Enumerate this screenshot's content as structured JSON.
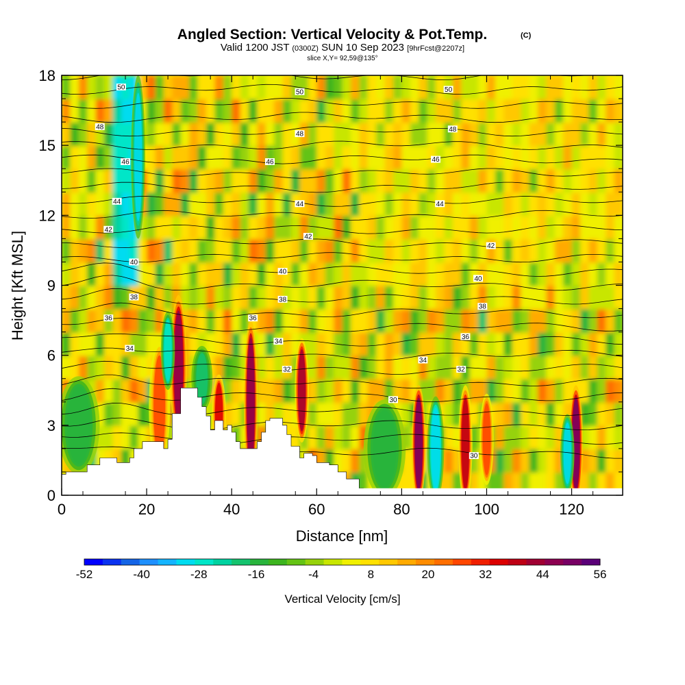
{
  "title": {
    "main": "Angled Section: Vertical Velocity & Pot.Temp.",
    "copyright": "(C)",
    "valid_prefix": "Valid 1200 JST",
    "valid_utc": "(0300Z)",
    "valid_date": "SUN 10 Sep 2023",
    "forecast": "[9hrFcst@2207z]",
    "slice": "slice X,Y= 92,59@135°"
  },
  "chart_data": {
    "type": "heatmap",
    "xlabel": "Distance [nm]",
    "ylabel": "Height [Kft MSL]",
    "xlim": [
      0,
      132
    ],
    "ylim": [
      0,
      18
    ],
    "x_ticks": [
      0,
      20,
      40,
      60,
      80,
      100,
      120
    ],
    "y_ticks": [
      0,
      3,
      6,
      9,
      12,
      15,
      18
    ],
    "colorbar": {
      "label": "Vertical Velocity [cm/s]",
      "tick_labels": [
        "-52",
        "-40",
        "-28",
        "-16",
        "-4",
        "8",
        "20",
        "32",
        "44",
        "56"
      ],
      "min": -52,
      "max": 56,
      "levels": [
        -52,
        -48,
        -44,
        -40,
        -36,
        -32,
        -28,
        -24,
        -20,
        -16,
        -12,
        -8,
        -4,
        0,
        4,
        8,
        12,
        16,
        20,
        24,
        28,
        32,
        36,
        40,
        44,
        48,
        52,
        56
      ],
      "colors": [
        "#0000ff",
        "#0a32f0",
        "#1464e6",
        "#1e90ff",
        "#14b4ff",
        "#00dcf0",
        "#00e6c8",
        "#00d2a0",
        "#14c36e",
        "#28b43c",
        "#3cb41e",
        "#64c314",
        "#96d20a",
        "#c8e600",
        "#f0f000",
        "#ffe100",
        "#ffc800",
        "#ffaa00",
        "#ff8c00",
        "#ff6e00",
        "#ff4600",
        "#f01e00",
        "#dc0000",
        "#be0014",
        "#a00032",
        "#8c0050",
        "#780064",
        "#5a0078"
      ]
    },
    "theta_contours": [
      {
        "label": "30",
        "height": 3.8
      },
      {
        "label": "32",
        "height": 5.3
      },
      {
        "label": "34",
        "height": 6.1
      },
      {
        "label": "36",
        "height": 7.0
      },
      {
        "label": "38",
        "height": 8.2
      },
      {
        "label": "40",
        "height": 9.4
      },
      {
        "label": "42",
        "height": 10.9
      },
      {
        "label": "44",
        "height": 12.5
      },
      {
        "label": "46",
        "height": 14.0
      },
      {
        "label": "48",
        "height": 15.5
      },
      {
        "label": "50",
        "height": 17.2
      }
    ],
    "theta_labels": [
      {
        "label": "50",
        "x": 14,
        "y": 17.5
      },
      {
        "label": "50",
        "x": 56,
        "y": 17.3
      },
      {
        "label": "50",
        "x": 91,
        "y": 17.4
      },
      {
        "label": "48",
        "x": 9,
        "y": 15.8
      },
      {
        "label": "48",
        "x": 56,
        "y": 15.5
      },
      {
        "label": "48",
        "x": 92,
        "y": 15.7
      },
      {
        "label": "46",
        "x": 15,
        "y": 14.3
      },
      {
        "label": "46",
        "x": 49,
        "y": 14.3
      },
      {
        "label": "46",
        "x": 88,
        "y": 14.4
      },
      {
        "label": "44",
        "x": 13,
        "y": 12.6
      },
      {
        "label": "44",
        "x": 56,
        "y": 12.5
      },
      {
        "label": "44",
        "x": 89,
        "y": 12.5
      },
      {
        "label": "42",
        "x": 11,
        "y": 11.4
      },
      {
        "label": "42",
        "x": 58,
        "y": 11.1
      },
      {
        "label": "42",
        "x": 101,
        "y": 10.7
      },
      {
        "label": "40",
        "x": 17,
        "y": 10.0
      },
      {
        "label": "40",
        "x": 52,
        "y": 9.6
      },
      {
        "label": "40",
        "x": 98,
        "y": 9.3
      },
      {
        "label": "38",
        "x": 17,
        "y": 8.5
      },
      {
        "label": "38",
        "x": 52,
        "y": 8.4
      },
      {
        "label": "38",
        "x": 99,
        "y": 8.1
      },
      {
        "label": "36",
        "x": 11,
        "y": 7.6
      },
      {
        "label": "36",
        "x": 45,
        "y": 7.6
      },
      {
        "label": "36",
        "x": 95,
        "y": 6.8
      },
      {
        "label": "34",
        "x": 16,
        "y": 6.3
      },
      {
        "label": "34",
        "x": 51,
        "y": 6.6
      },
      {
        "label": "34",
        "x": 85,
        "y": 5.8
      },
      {
        "label": "32",
        "x": 53,
        "y": 5.4
      },
      {
        "label": "32",
        "x": 94,
        "y": 5.4
      },
      {
        "label": "30",
        "x": 78,
        "y": 4.1
      },
      {
        "label": "30",
        "x": 97,
        "y": 1.7
      }
    ],
    "terrain": [
      [
        0,
        0.9
      ],
      [
        1,
        1.0
      ],
      [
        5,
        1.0
      ],
      [
        6,
        1.3
      ],
      [
        8,
        1.3
      ],
      [
        9,
        1.6
      ],
      [
        12,
        1.6
      ],
      [
        13,
        1.4
      ],
      [
        15,
        1.4
      ],
      [
        16,
        1.6
      ],
      [
        17,
        2.0
      ],
      [
        18,
        2.0
      ],
      [
        19,
        2.3
      ],
      [
        23,
        2.3
      ],
      [
        24,
        2.0
      ],
      [
        25,
        2.4
      ],
      [
        26,
        3.5
      ],
      [
        27,
        3.5
      ],
      [
        28,
        4.6
      ],
      [
        31,
        4.6
      ],
      [
        32,
        4.2
      ],
      [
        33,
        3.8
      ],
      [
        34,
        3.4
      ],
      [
        35,
        2.8
      ],
      [
        36,
        3.2
      ],
      [
        37,
        3.2
      ],
      [
        38,
        2.8
      ],
      [
        39,
        3.0
      ],
      [
        40,
        2.7
      ],
      [
        41,
        2.3
      ],
      [
        42,
        2.0
      ],
      [
        45,
        2.0
      ],
      [
        46,
        2.3
      ],
      [
        47,
        2.7
      ],
      [
        48,
        3.2
      ],
      [
        49,
        3.3
      ],
      [
        51,
        3.3
      ],
      [
        52,
        3.0
      ],
      [
        53,
        2.6
      ],
      [
        54,
        2.1
      ],
      [
        56,
        1.6
      ],
      [
        57,
        1.8
      ],
      [
        59,
        1.7
      ],
      [
        60,
        1.4
      ],
      [
        63,
        1.3
      ],
      [
        65,
        1.0
      ],
      [
        67,
        0.7
      ],
      [
        70,
        0.3
      ],
      [
        71,
        0
      ]
    ]
  }
}
